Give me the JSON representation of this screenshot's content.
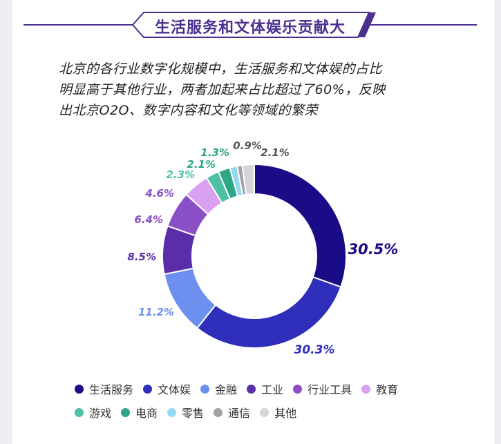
{
  "header": {
    "title": "生活服务和文体娱乐贡献大"
  },
  "intro": {
    "line1": "北京的各行业数字化规模中，生活服务和文体娱的占比",
    "line2": "明显高于其他行业，两者加起来占比超过了60%，反映",
    "line3": "出北京O2O、数字内容和文化等领域的繁荣"
  },
  "colors": {
    "accent": "#4b2f8f",
    "frame": "#efeff3"
  },
  "chart_data": {
    "type": "pie",
    "title": "",
    "slices": [
      {
        "name": "生活服务",
        "value": 30.5,
        "label": "30.5%",
        "color": "#1a0b86"
      },
      {
        "name": "文体娱",
        "value": 30.3,
        "label": "30.3%",
        "color": "#2f2fbb"
      },
      {
        "name": "金融",
        "value": 11.2,
        "label": "11.2%",
        "color": "#6c8ff0"
      },
      {
        "name": "工业",
        "value": 8.5,
        "label": "8.5%",
        "color": "#5a2ea8"
      },
      {
        "name": "行业工具",
        "value": 6.4,
        "label": "6.4%",
        "color": "#8a4fc6"
      },
      {
        "name": "教育",
        "value": 4.6,
        "label": "4.6%",
        "color": "#d9a1f0"
      },
      {
        "name": "游戏",
        "value": 2.3,
        "label": "2.3%",
        "color": "#4ec0a3"
      },
      {
        "name": "电商",
        "value": 2.1,
        "label": "2.1%",
        "color": "#2ea688"
      },
      {
        "name": "零售",
        "value": 1.3,
        "label": "1.3%",
        "color": "#95d8f2"
      },
      {
        "name": "通信",
        "value": 0.9,
        "label": "0.9%",
        "color": "#a2a2a6"
      },
      {
        "name": "其他",
        "value": 2.1,
        "label": "2.1%",
        "color": "#d6d6da"
      }
    ],
    "legend": {
      "placement": "bottom",
      "rows": [
        [
          "生活服务",
          "文体娱",
          "金融",
          "工业",
          "行业工具",
          "教育"
        ],
        [
          "游戏",
          "电商",
          "零售",
          "通信",
          "其他"
        ]
      ]
    }
  }
}
